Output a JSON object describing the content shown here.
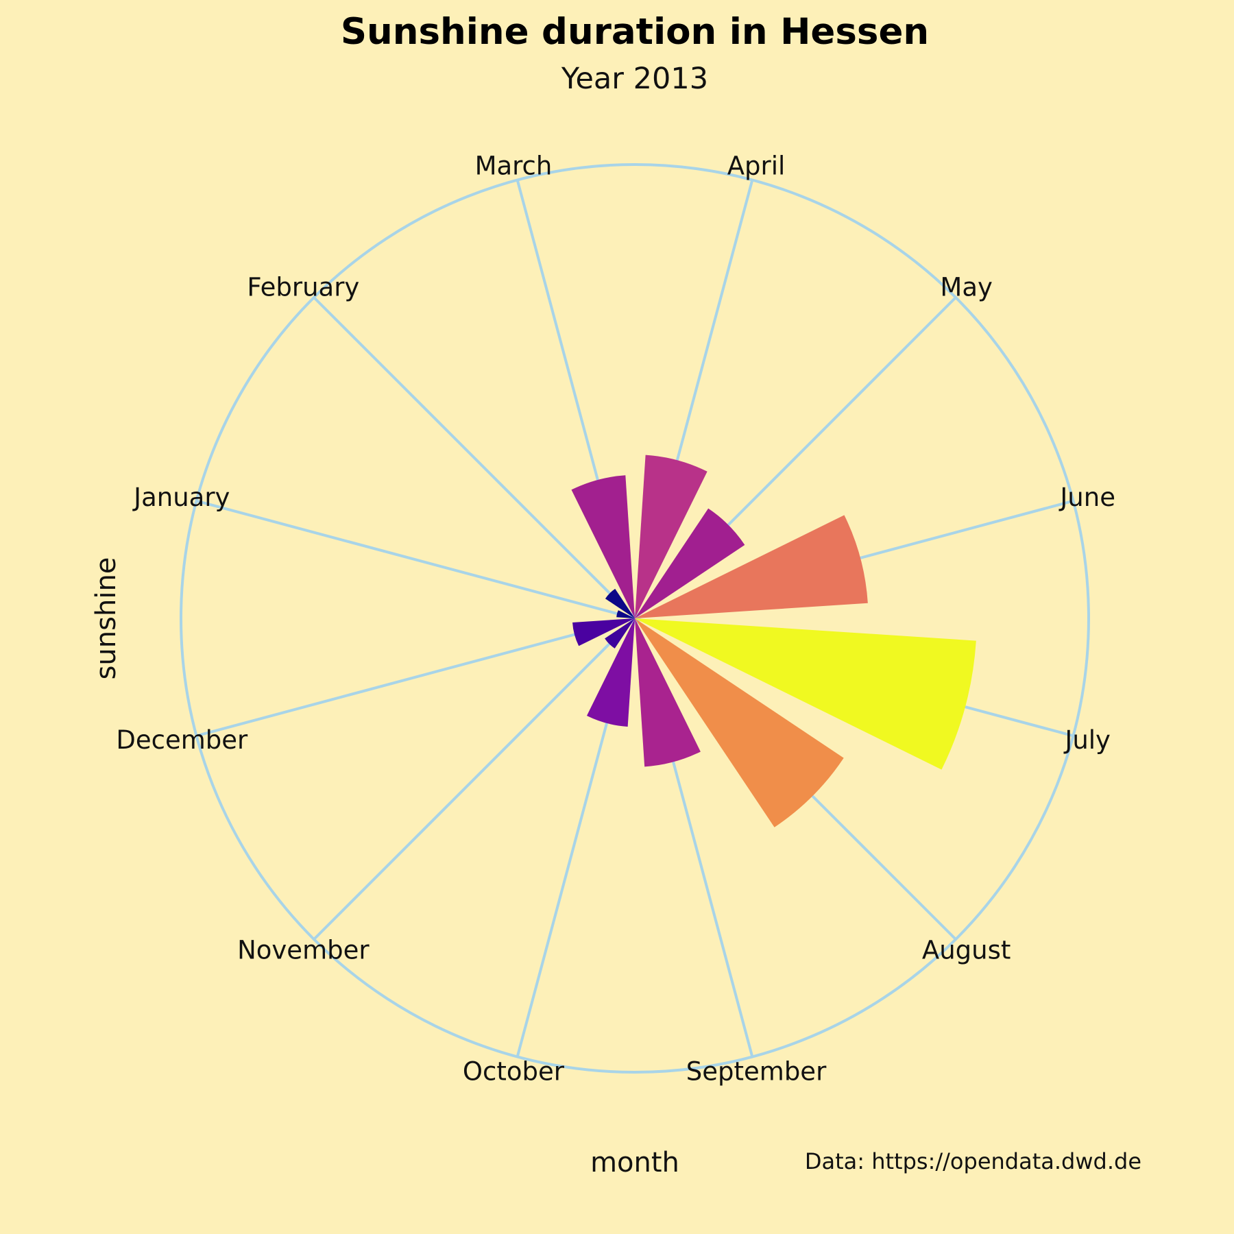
{
  "chart_data": {
    "type": "bar",
    "polar": true,
    "title": "Sunshine duration in Hessen",
    "subtitle": "Year 2013",
    "xlabel": "month",
    "ylabel": "sunshine",
    "caption": "Data: https://opendata.dwd.de",
    "categories": [
      "January",
      "February",
      "March",
      "April",
      "May",
      "June",
      "July",
      "August",
      "September",
      "October",
      "November",
      "December"
    ],
    "values": [
      28,
      54,
      218,
      249,
      201,
      355,
      520,
      382,
      226,
      165,
      55,
      95
    ],
    "ylim": [
      0,
      690
    ],
    "colormap": "plasma",
    "colors": [
      "#0d0887",
      "#0d0887",
      "#a2208f",
      "#b83289",
      "#a11f90",
      "#e8765c",
      "#f0f921",
      "#f08e4a",
      "#a9238f",
      "#7e0ea3",
      "#3e049c",
      "#4a02a0"
    ],
    "grid": true,
    "background": "#fdf0b8",
    "grid_color": "#a8d4e8"
  }
}
